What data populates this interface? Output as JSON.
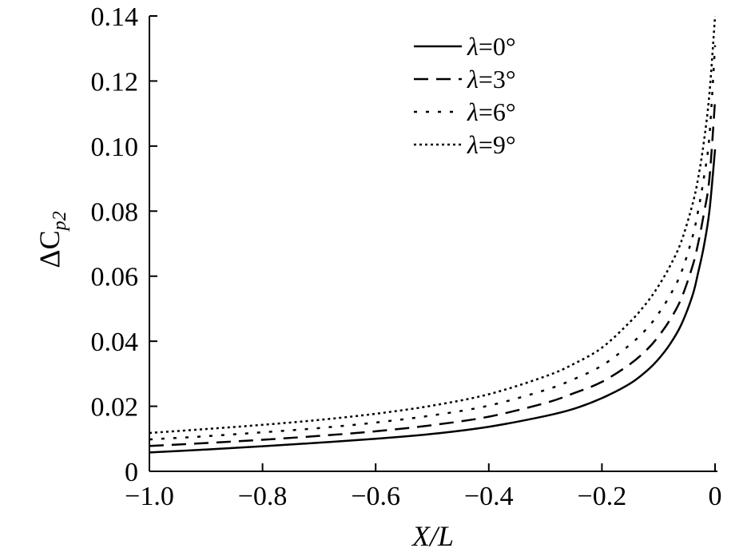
{
  "chart_data": {
    "type": "line",
    "xlabel": "X/L",
    "ylabel_main": "ΔC",
    "ylabel_sub": "p2",
    "xlim": [
      -1.0,
      0
    ],
    "ylim": [
      0,
      0.14
    ],
    "x_ticks": [
      -1.0,
      -0.8,
      -0.6,
      -0.4,
      -0.2,
      0
    ],
    "x_tick_labels": [
      "−1.0",
      "−0.8",
      "−0.6",
      "−0.4",
      "−0.2",
      "0"
    ],
    "y_ticks": [
      0,
      0.02,
      0.04,
      0.06,
      0.08,
      0.1,
      0.12,
      0.14
    ],
    "y_tick_labels": [
      "0",
      "0.02",
      "0.04",
      "0.06",
      "0.08",
      "0.10",
      "0.12",
      "0.14"
    ],
    "grid": false,
    "legend_position": "top-right",
    "x": [
      -1.0,
      -0.9,
      -0.8,
      -0.7,
      -0.6,
      -0.5,
      -0.4,
      -0.3,
      -0.25,
      -0.2,
      -0.15,
      -0.12,
      -0.1,
      -0.08,
      -0.06,
      -0.04,
      -0.03,
      -0.02,
      -0.01,
      0.0
    ],
    "series": [
      {
        "name": "=0°",
        "symbol": "λ",
        "style": "solid",
        "values": [
          0.0058,
          0.0067,
          0.0077,
          0.0088,
          0.01,
          0.0115,
          0.0137,
          0.017,
          0.0192,
          0.0225,
          0.027,
          0.031,
          0.0345,
          0.039,
          0.045,
          0.054,
          0.061,
          0.069,
          0.08,
          0.099
        ]
      },
      {
        "name": "=3°",
        "symbol": "λ",
        "style": "dashed",
        "values": [
          0.0078,
          0.0087,
          0.0097,
          0.0109,
          0.0123,
          0.0142,
          0.0168,
          0.021,
          0.024,
          0.0275,
          0.033,
          0.0375,
          0.0415,
          0.0465,
          0.053,
          0.063,
          0.07,
          0.079,
          0.09,
          0.114
        ]
      },
      {
        "name": "=6°",
        "symbol": "λ",
        "style": "dash-dot",
        "values": [
          0.0098,
          0.0108,
          0.012,
          0.0133,
          0.015,
          0.0172,
          0.0202,
          0.025,
          0.0283,
          0.0325,
          0.039,
          0.044,
          0.0485,
          0.054,
          0.061,
          0.072,
          0.08,
          0.09,
          0.103,
          0.131
        ]
      },
      {
        "name": "=9°",
        "symbol": "λ",
        "style": "dotted",
        "values": [
          0.0118,
          0.013,
          0.0143,
          0.0158,
          0.0177,
          0.0202,
          0.0237,
          0.0292,
          0.033,
          0.038,
          0.046,
          0.052,
          0.057,
          0.063,
          0.0705,
          0.082,
          0.09,
          0.101,
          0.116,
          0.14
        ]
      }
    ]
  }
}
